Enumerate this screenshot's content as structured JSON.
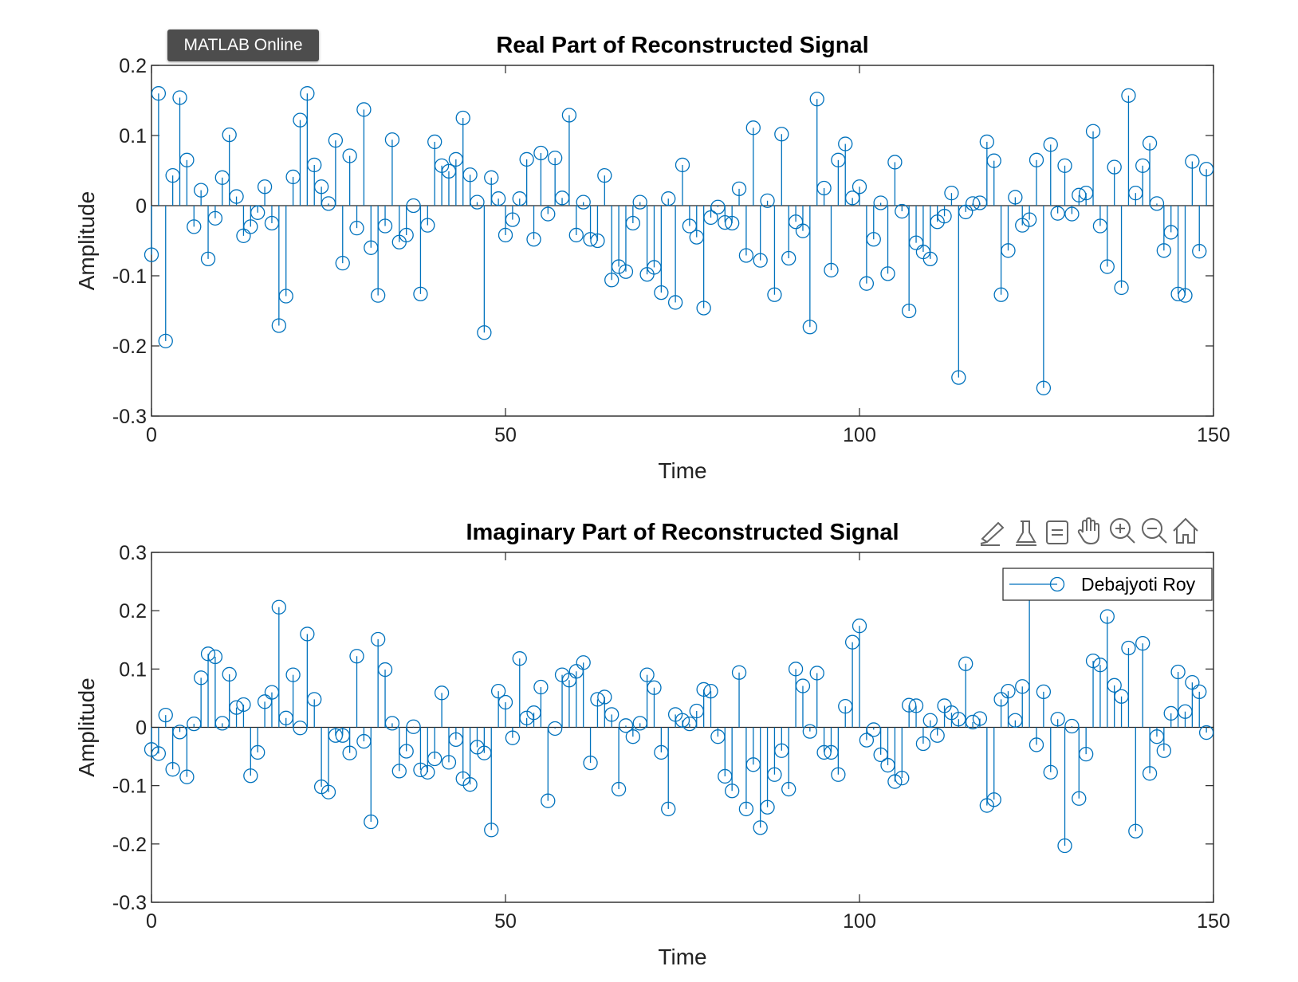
{
  "app": {
    "badge": "MATLAB Online"
  },
  "toolbar": {
    "icons": [
      "brush-icon",
      "data-tips-icon",
      "restore-view-icon",
      "pan-icon",
      "zoom-in-icon",
      "zoom-out-icon",
      "home-icon"
    ]
  },
  "colors": {
    "stem": "#0072BD",
    "axis": "#262626"
  },
  "chart_data": [
    {
      "type": "stem",
      "title": "Real Part of Reconstructed Signal",
      "xlabel": "Time",
      "ylabel": "Amplitude",
      "xlim": [
        0,
        150
      ],
      "ylim": [
        -0.3,
        0.2
      ],
      "xticks": [
        0,
        50,
        100,
        150
      ],
      "yticks": [
        0.2,
        0.1,
        0,
        -0.1,
        -0.2,
        -0.3
      ],
      "ytick_labels": [
        "0.2",
        "0.1",
        "0",
        "-0.1",
        "-0.2",
        "-0.3"
      ],
      "box": true,
      "legend": null,
      "x_start": 0,
      "x_step": 1,
      "values": [
        -0.07,
        0.16,
        -0.193,
        0.043,
        0.154,
        0.065,
        -0.03,
        0.022,
        -0.076,
        -0.018,
        0.04,
        0.101,
        0.013,
        -0.043,
        -0.03,
        -0.01,
        0.027,
        -0.025,
        -0.171,
        -0.129,
        0.041,
        0.122,
        0.16,
        0.058,
        0.027,
        0.003,
        0.093,
        -0.082,
        0.071,
        -0.032,
        0.137,
        -0.06,
        -0.128,
        -0.029,
        0.094,
        -0.052,
        -0.042,
        0.0,
        -0.126,
        -0.028,
        0.091,
        0.057,
        0.049,
        0.066,
        0.125,
        0.044,
        0.005,
        -0.181,
        0.04,
        0.01,
        -0.042,
        -0.02,
        0.01,
        0.066,
        -0.048,
        0.075,
        -0.012,
        0.068,
        0.011,
        0.129,
        -0.042,
        0.005,
        -0.048,
        -0.05,
        0.043,
        -0.106,
        -0.087,
        -0.094,
        -0.025,
        0.005,
        -0.098,
        -0.088,
        -0.124,
        0.01,
        -0.138,
        0.058,
        -0.029,
        -0.045,
        -0.146,
        -0.017,
        -0.002,
        -0.024,
        -0.025,
        0.024,
        -0.071,
        0.111,
        -0.078,
        0.007,
        -0.127,
        0.102,
        -0.075,
        -0.023,
        -0.036,
        -0.173,
        0.152,
        0.025,
        -0.092,
        0.065,
        0.088,
        0.011,
        0.027,
        -0.111,
        -0.048,
        0.004,
        -0.097,
        0.062,
        -0.008,
        -0.15,
        -0.053,
        -0.066,
        -0.076,
        -0.023,
        -0.015,
        0.018,
        -0.245,
        -0.009,
        0.003,
        0.004,
        0.091,
        0.064,
        -0.127,
        -0.064,
        0.012,
        -0.028,
        -0.02,
        0.065,
        -0.26,
        0.087,
        -0.011,
        0.057,
        -0.012,
        0.015,
        0.018,
        0.106,
        -0.029,
        -0.087,
        0.055,
        -0.117,
        0.157,
        0.018,
        0.057,
        0.089,
        0.003,
        -0.064,
        -0.038,
        -0.126,
        -0.128,
        0.063,
        -0.065,
        0.052
      ]
    },
    {
      "type": "stem",
      "title": "Imaginary Part of Reconstructed Signal",
      "xlabel": "Time",
      "ylabel": "Amplitude",
      "xlim": [
        0,
        150
      ],
      "ylim": [
        -0.3,
        0.3
      ],
      "xticks": [
        0,
        50,
        100,
        150
      ],
      "yticks": [
        0.3,
        0.2,
        0.1,
        0,
        -0.1,
        -0.2,
        -0.3
      ],
      "ytick_labels": [
        "0.3",
        "0.2",
        "0.1",
        "0",
        "-0.1",
        "-0.2",
        "-0.3"
      ],
      "box": true,
      "legend": {
        "entries": [
          "Debajyoti Roy"
        ],
        "location": "top-right"
      },
      "x_start": 0,
      "x_step": 1,
      "values": [
        -0.038,
        -0.045,
        0.021,
        -0.072,
        -0.008,
        -0.085,
        0.006,
        0.085,
        0.126,
        0.121,
        0.007,
        0.091,
        0.034,
        0.039,
        -0.083,
        -0.043,
        0.044,
        0.06,
        0.206,
        0.016,
        0.09,
        -0.001,
        0.16,
        0.048,
        -0.102,
        -0.111,
        -0.014,
        -0.014,
        -0.044,
        0.122,
        -0.024,
        -0.162,
        0.151,
        0.099,
        0.007,
        -0.075,
        -0.041,
        0.001,
        -0.073,
        -0.077,
        -0.054,
        0.059,
        -0.06,
        -0.021,
        -0.088,
        -0.098,
        -0.034,
        -0.044,
        -0.176,
        0.062,
        0.043,
        -0.018,
        0.118,
        0.016,
        0.025,
        0.069,
        -0.126,
        -0.002,
        0.09,
        0.081,
        0.096,
        0.111,
        -0.061,
        0.048,
        0.052,
        0.022,
        -0.106,
        0.003,
        -0.016,
        0.007,
        0.09,
        0.068,
        -0.043,
        -0.14,
        0.022,
        0.012,
        0.006,
        0.028,
        0.065,
        0.062,
        -0.016,
        -0.084,
        -0.109,
        0.094,
        -0.14,
        -0.064,
        -0.172,
        -0.137,
        -0.081,
        -0.04,
        -0.106,
        0.1,
        0.071,
        -0.007,
        0.093,
        -0.043,
        -0.043,
        -0.081,
        0.036,
        0.146,
        0.174,
        -0.022,
        -0.004,
        -0.047,
        -0.065,
        -0.093,
        -0.087,
        0.038,
        0.037,
        -0.028,
        0.012,
        -0.014,
        0.037,
        0.025,
        0.014,
        0.109,
        0.009,
        0.015,
        -0.134,
        -0.124,
        0.048,
        0.062,
        0.012,
        0.07,
        0.26,
        -0.03,
        0.061,
        -0.077,
        0.014,
        -0.203,
        0.002,
        -0.122,
        -0.046,
        0.114,
        0.107,
        0.19,
        0.072,
        0.053,
        0.136,
        -0.178,
        0.144,
        -0.079,
        -0.016,
        -0.04,
        0.024,
        0.095,
        0.027,
        0.077,
        0.061,
        -0.009
      ]
    }
  ]
}
